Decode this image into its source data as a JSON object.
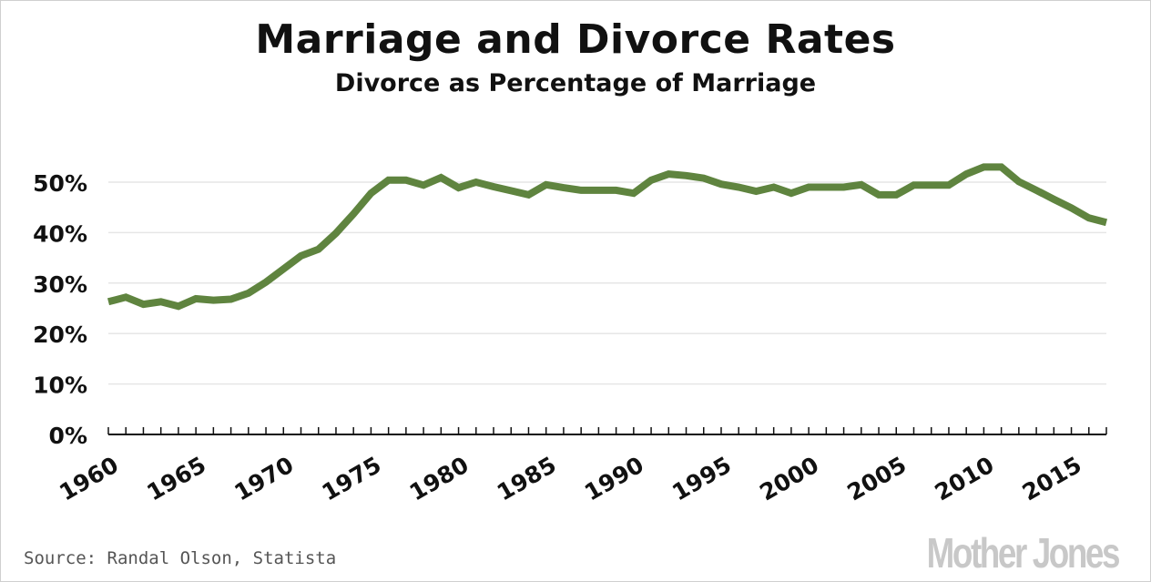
{
  "chart_data": {
    "type": "line",
    "title": "Marriage and Divorce Rates",
    "subtitle": "Divorce as Percentage of Marriage",
    "xlabel": "",
    "ylabel": "",
    "xlim": [
      1960,
      2017
    ],
    "ylim": [
      0,
      50
    ],
    "grid": true,
    "y_ticks": [
      0,
      10,
      20,
      30,
      40,
      50
    ],
    "y_tick_labels": [
      "0%",
      "10%",
      "20%",
      "30%",
      "40%",
      "50%"
    ],
    "x_ticks": [
      1960,
      1965,
      1970,
      1975,
      1980,
      1985,
      1990,
      1995,
      2000,
      2005,
      2010,
      2015
    ],
    "x_tick_labels": [
      "1960",
      "1965",
      "1970",
      "1975",
      "1980",
      "1985",
      "1990",
      "1995",
      "2000",
      "2005",
      "2010",
      "2015"
    ],
    "line_color": "#5f843f",
    "x": [
      1960,
      1961,
      1962,
      1963,
      1964,
      1965,
      1966,
      1967,
      1968,
      1969,
      1970,
      1971,
      1972,
      1973,
      1974,
      1975,
      1976,
      1977,
      1978,
      1979,
      1980,
      1981,
      1982,
      1983,
      1984,
      1985,
      1986,
      1987,
      1988,
      1989,
      1990,
      1991,
      1992,
      1993,
      1994,
      1995,
      1996,
      1997,
      1998,
      1999,
      2000,
      2001,
      2002,
      2003,
      2004,
      2005,
      2006,
      2007,
      2008,
      2009,
      2010,
      2011,
      2012,
      2013,
      2014,
      2015,
      2016,
      2017
    ],
    "values": [
      26.3,
      27.2,
      25.8,
      26.3,
      25.4,
      26.9,
      26.6,
      26.8,
      28.0,
      30.2,
      32.8,
      35.4,
      36.7,
      39.9,
      43.7,
      47.8,
      50.4,
      50.4,
      49.4,
      50.9,
      48.9,
      50.0,
      49.1,
      48.3,
      47.5,
      49.5,
      48.9,
      48.4,
      48.4,
      48.4,
      47.8,
      50.4,
      51.6,
      51.3,
      50.8,
      49.6,
      49.0,
      48.2,
      49.0,
      47.8,
      49.0,
      49.0,
      49.0,
      49.5,
      47.5,
      47.5,
      49.4,
      49.4,
      49.4,
      51.6,
      53.0,
      53.0,
      50.1,
      48.4,
      46.6,
      44.9,
      42.9,
      42.0
    ]
  },
  "source": "Source: Randal Olson, Statista",
  "logo": "Mother Jones"
}
